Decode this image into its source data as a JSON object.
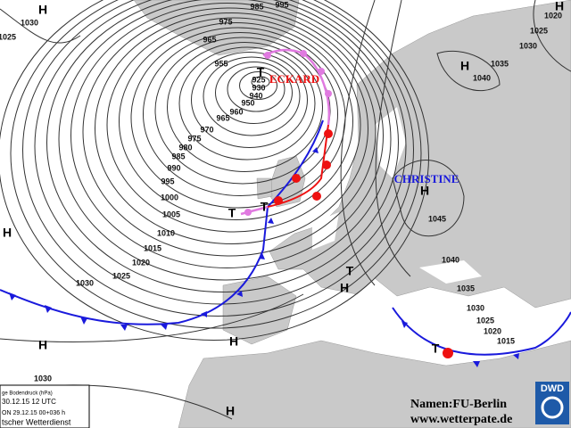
{
  "isobar_labels": [
    "985",
    "995",
    "975",
    "965",
    "955",
    "925",
    "930",
    "940",
    "950",
    "960",
    "965",
    "970",
    "975",
    "980",
    "985",
    "990",
    "995",
    "1000",
    "1005",
    "1010",
    "1015",
    "1020",
    "1025",
    "1030",
    "1030",
    "1025",
    "1030",
    "1020",
    "1025",
    "1030",
    "1035",
    "1040",
    "1045",
    "1040",
    "1035",
    "1030",
    "1025",
    "1020",
    "1015"
  ],
  "highs": [
    "H",
    "H",
    "H",
    "H",
    "H",
    "H",
    "H",
    "H",
    "H"
  ],
  "lows": [
    "T",
    "T",
    "T",
    "T",
    "T"
  ],
  "systems": [
    "ECKARD",
    "CHRISTINE"
  ],
  "credits": [
    "Namen:FU-Berlin",
    "www.wetterpate.de"
  ],
  "logo": "DWD",
  "legend": [
    "ge Bodendruck (hPa)",
    "30.12.15  12 UTC",
    "ON  29.12.15 00+036 h",
    "tscher Wetterdienst"
  ]
}
